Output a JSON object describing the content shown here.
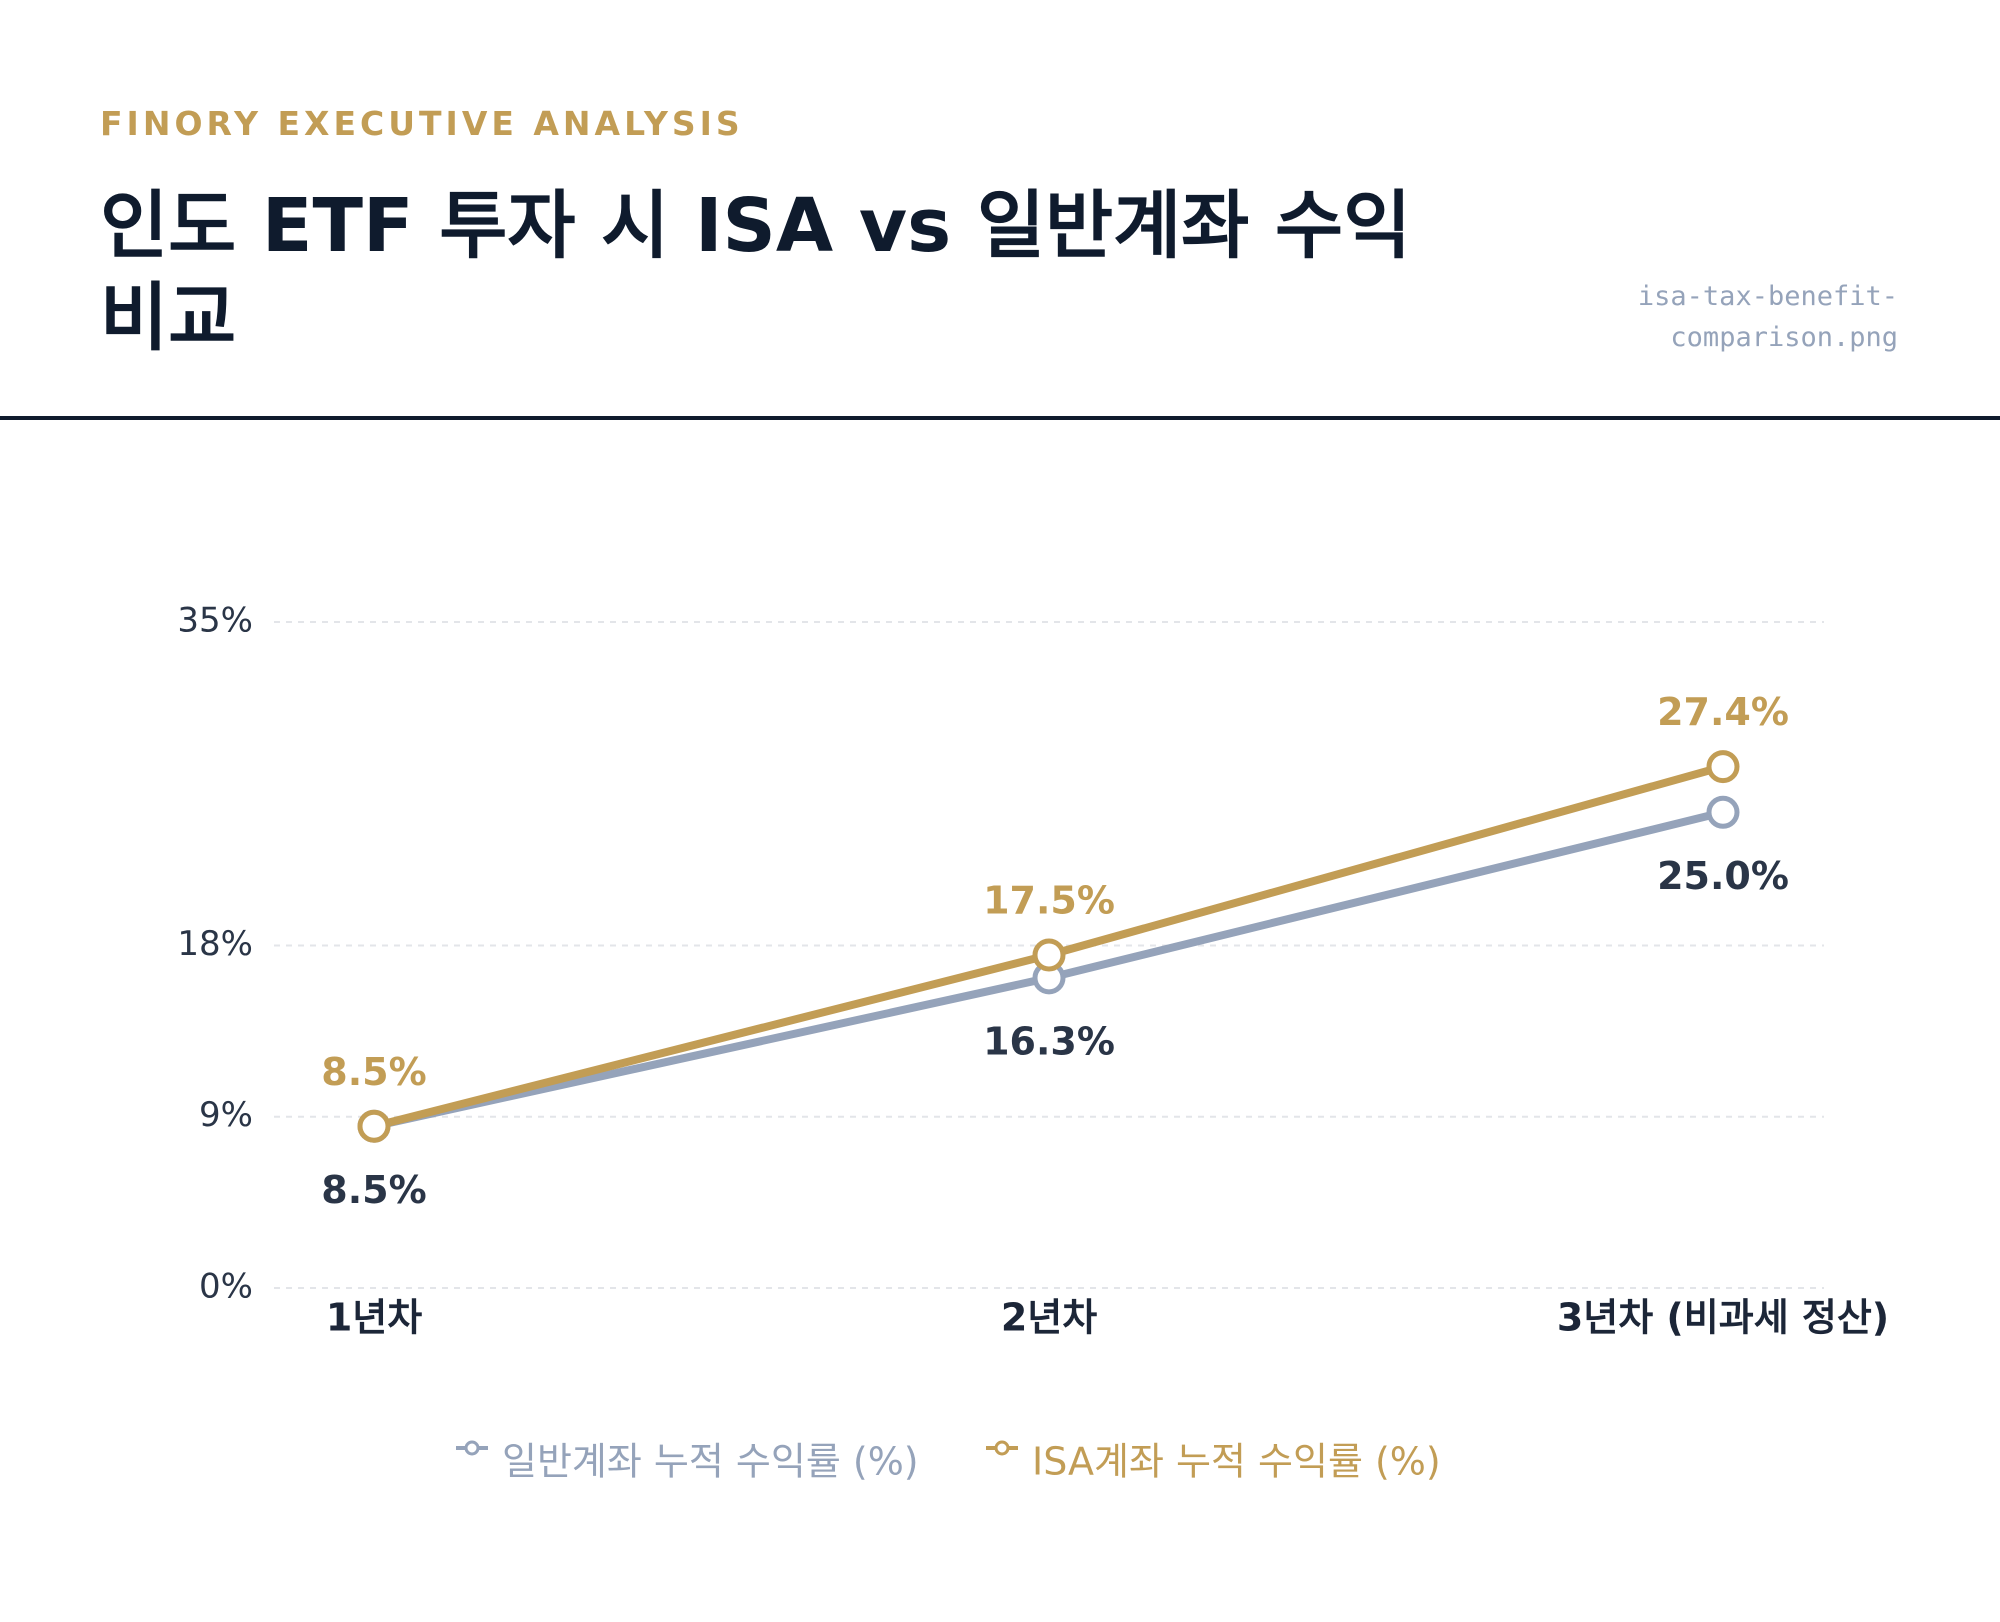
{
  "header": {
    "eyebrow": "FINORY EXECUTIVE ANALYSIS",
    "title": "인도 ETF 투자 시 ISA vs 일반계좌 수익 비교",
    "filename": "isa-tax-benefit-comparison.png"
  },
  "chart_data": {
    "type": "line",
    "categories": [
      "1년차",
      "2년차",
      "3년차 (비과세 정산)"
    ],
    "series": [
      {
        "name": "일반계좌 누적 수익률 (%)",
        "color": "#95a3ba",
        "values": [
          8.5,
          16.3,
          25.0
        ],
        "value_labels": [
          "8.5%",
          "16.3%",
          "25.0%"
        ]
      },
      {
        "name": "ISA계좌 누적 수익률 (%)",
        "color": "#c29d55",
        "values": [
          8.5,
          17.5,
          27.4
        ],
        "value_labels": [
          "8.5%",
          "17.5%",
          "27.4%"
        ]
      }
    ],
    "ylim": [
      0,
      35
    ],
    "yticks": [
      {
        "value": 0,
        "label": "0%"
      },
      {
        "value": 9,
        "label": "9%"
      },
      {
        "value": 18,
        "label": "18%"
      },
      {
        "value": 35,
        "label": "35%"
      }
    ],
    "grid": true,
    "legend": "bottom"
  }
}
